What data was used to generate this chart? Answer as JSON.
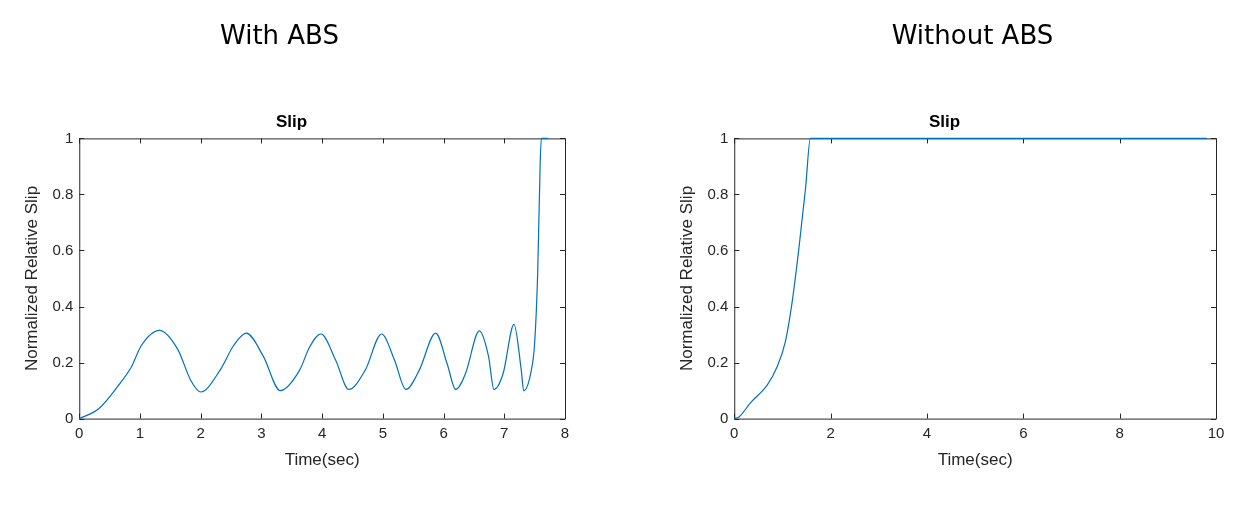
{
  "chart_data": [
    {
      "type": "line",
      "title": "With ABS",
      "subtitle": "Slip",
      "xlabel": "Time(sec)",
      "ylabel": "Normalized Relative Slip",
      "xlim": [
        0,
        8
      ],
      "xticks": [
        0,
        1,
        2,
        3,
        4,
        5,
        6,
        7,
        8
      ],
      "ylim": [
        0,
        1
      ],
      "yticks": [
        0,
        0.2,
        0.4,
        0.6,
        0.8,
        1
      ],
      "grid": false,
      "legend": false,
      "marker": "none",
      "line_style": "solid",
      "series": [
        {
          "color": "#0072bd",
          "x": [
            0,
            0.32,
            0.64,
            0.86,
            1.02,
            1.32,
            1.62,
            1.84,
            2.0,
            2.32,
            2.54,
            2.75,
            3.03,
            3.31,
            3.63,
            3.79,
            3.98,
            4.22,
            4.44,
            4.71,
            4.98,
            5.19,
            5.38,
            5.6,
            5.87,
            6.06,
            6.2,
            6.36,
            6.59,
            6.74,
            6.83,
            6.98,
            7.16,
            7.28,
            7.32,
            7.44,
            7.5,
            7.55,
            7.59,
            7.61,
            7.72
          ],
          "values": [
            0,
            0.035,
            0.117,
            0.185,
            0.26,
            0.315,
            0.248,
            0.135,
            0.095,
            0.173,
            0.26,
            0.305,
            0.223,
            0.1,
            0.173,
            0.254,
            0.302,
            0.21,
            0.104,
            0.173,
            0.302,
            0.21,
            0.104,
            0.173,
            0.305,
            0.195,
            0.104,
            0.16,
            0.313,
            0.223,
            0.104,
            0.16,
            0.336,
            0.173,
            0.1,
            0.167,
            0.27,
            0.52,
            0.9,
            1,
            1
          ]
        }
      ]
    },
    {
      "type": "line",
      "title": "Without ABS",
      "subtitle": "Slip",
      "xlabel": "Time(sec)",
      "ylabel": "Normalized Relative Slip",
      "xlim": [
        0,
        10
      ],
      "xticks": [
        0,
        2,
        4,
        6,
        8,
        10
      ],
      "ylim": [
        0,
        1
      ],
      "yticks": [
        0,
        0.2,
        0.4,
        0.6,
        0.8,
        1
      ],
      "grid": false,
      "legend": false,
      "marker": "none",
      "line_style": "solid",
      "series": [
        {
          "color": "#0072bd",
          "x": [
            0,
            0.1,
            0.34,
            0.69,
            0.89,
            1.06,
            1.2,
            1.34,
            1.48,
            1.58,
            9.81
          ],
          "values": [
            0,
            0.006,
            0.057,
            0.121,
            0.185,
            0.274,
            0.414,
            0.605,
            0.822,
            1,
            1
          ]
        }
      ]
    }
  ]
}
